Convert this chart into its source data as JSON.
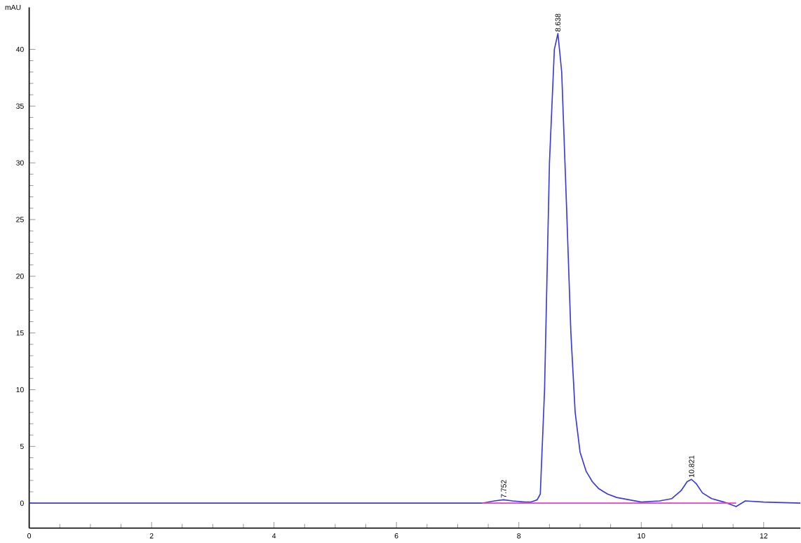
{
  "chart_data": {
    "type": "line",
    "ylabel": "mAU",
    "xlim": [
      0,
      12.6
    ],
    "ylim": [
      -2.2,
      43.7
    ],
    "xticks": [
      0,
      2,
      4,
      6,
      8,
      10,
      12
    ],
    "yticks": [
      0,
      5,
      10,
      15,
      20,
      25,
      30,
      35,
      40
    ],
    "marker": "none",
    "line_style": "solid",
    "series": [
      {
        "color": "#3b3bd6",
        "x": [
          0,
          1,
          2,
          3,
          4,
          5,
          6,
          7,
          7.4,
          7.6,
          7.75,
          7.9,
          8.1,
          8.2,
          8.3,
          8.35,
          8.42,
          8.5,
          8.58,
          8.638,
          8.7,
          8.78,
          8.85,
          8.92,
          9.0,
          9.1,
          9.2,
          9.3,
          9.45,
          9.6,
          9.8,
          10.0,
          10.3,
          10.5,
          10.65,
          10.75,
          10.82,
          10.9,
          11.0,
          11.15,
          11.35,
          11.55,
          11.7,
          12.0,
          12.6
        ],
        "values": [
          0,
          0,
          0,
          0,
          0,
          0,
          0,
          0,
          0,
          0.2,
          0.3,
          0.2,
          0.1,
          0.1,
          0.3,
          0.8,
          10,
          30,
          40,
          41.4,
          38,
          26,
          15,
          8,
          4.5,
          2.8,
          1.9,
          1.3,
          0.8,
          0.5,
          0.3,
          0.1,
          0.2,
          0.4,
          1.1,
          1.9,
          2.1,
          1.7,
          0.9,
          0.4,
          0.1,
          -0.3,
          0.2,
          0.1,
          0
        ]
      },
      {
        "color": "#ff33cc",
        "x": [
          7.4,
          11.55
        ],
        "values": [
          0,
          0
        ]
      }
    ],
    "annotations": [
      {
        "text": "7.752",
        "x": 7.752,
        "y": 0.3
      },
      {
        "text": "8.638",
        "x": 8.638,
        "y": 41.4
      },
      {
        "text": "10.821",
        "x": 10.821,
        "y": 2.1
      }
    ]
  }
}
